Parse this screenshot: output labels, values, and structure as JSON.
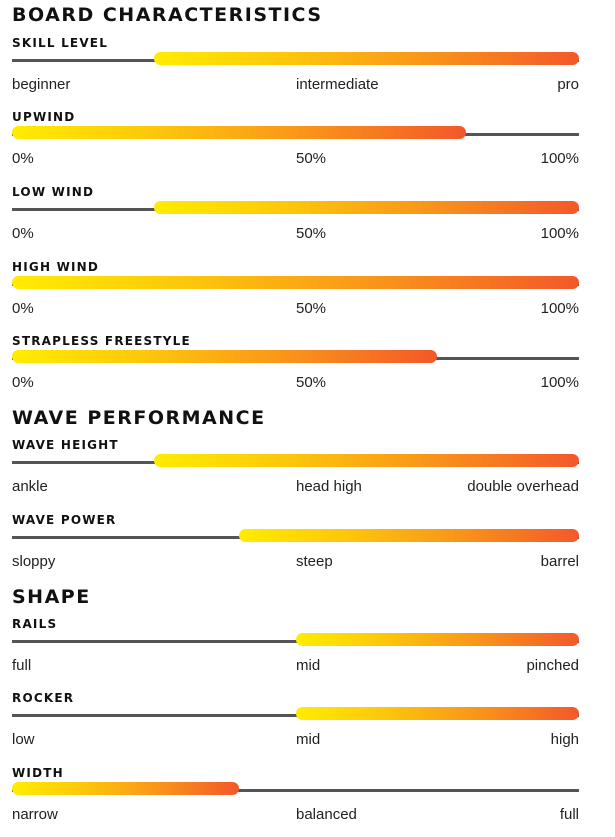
{
  "colors": {
    "fill_start": "#ffec00",
    "fill_end": "#f3582a",
    "track": "#555555",
    "heading": "#111111"
  },
  "sections": [
    {
      "title": "BOARD CHARACTERISTICS",
      "metrics": [
        {
          "label": "SKILL LEVEL",
          "from": 0.25,
          "to": 1.0,
          "ticks": [
            "beginner",
            "intermediate",
            "pro"
          ]
        },
        {
          "label": "UPWIND",
          "from": 0.0,
          "to": 0.8,
          "ticks": [
            "0%",
            "50%",
            "100%"
          ]
        },
        {
          "label": "LOW WIND",
          "from": 0.25,
          "to": 1.0,
          "ticks": [
            "0%",
            "50%",
            "100%"
          ]
        },
        {
          "label": "HIGH WIND",
          "from": 0.0,
          "to": 1.0,
          "ticks": [
            "0%",
            "50%",
            "100%"
          ]
        },
        {
          "label": "STRAPLESS FREESTYLE",
          "from": 0.0,
          "to": 0.75,
          "ticks": [
            "0%",
            "50%",
            "100%"
          ]
        }
      ]
    },
    {
      "title": "WAVE PERFORMANCE",
      "metrics": [
        {
          "label": "WAVE HEIGHT",
          "from": 0.25,
          "to": 1.0,
          "ticks": [
            "ankle",
            "head high",
            "double overhead"
          ]
        },
        {
          "label": "WAVE POWER",
          "from": 0.4,
          "to": 1.0,
          "ticks": [
            "sloppy",
            "steep",
            "barrel"
          ]
        }
      ]
    },
    {
      "title": "SHAPE",
      "metrics": [
        {
          "label": "RAILS",
          "from": 0.5,
          "to": 1.0,
          "ticks": [
            "full",
            "mid",
            "pinched"
          ]
        },
        {
          "label": "ROCKER",
          "from": 0.5,
          "to": 1.0,
          "ticks": [
            "low",
            "mid",
            "high"
          ]
        },
        {
          "label": "WIDTH",
          "from": 0.0,
          "to": 0.4,
          "ticks": [
            "narrow",
            "balanced",
            "full"
          ]
        }
      ]
    }
  ]
}
